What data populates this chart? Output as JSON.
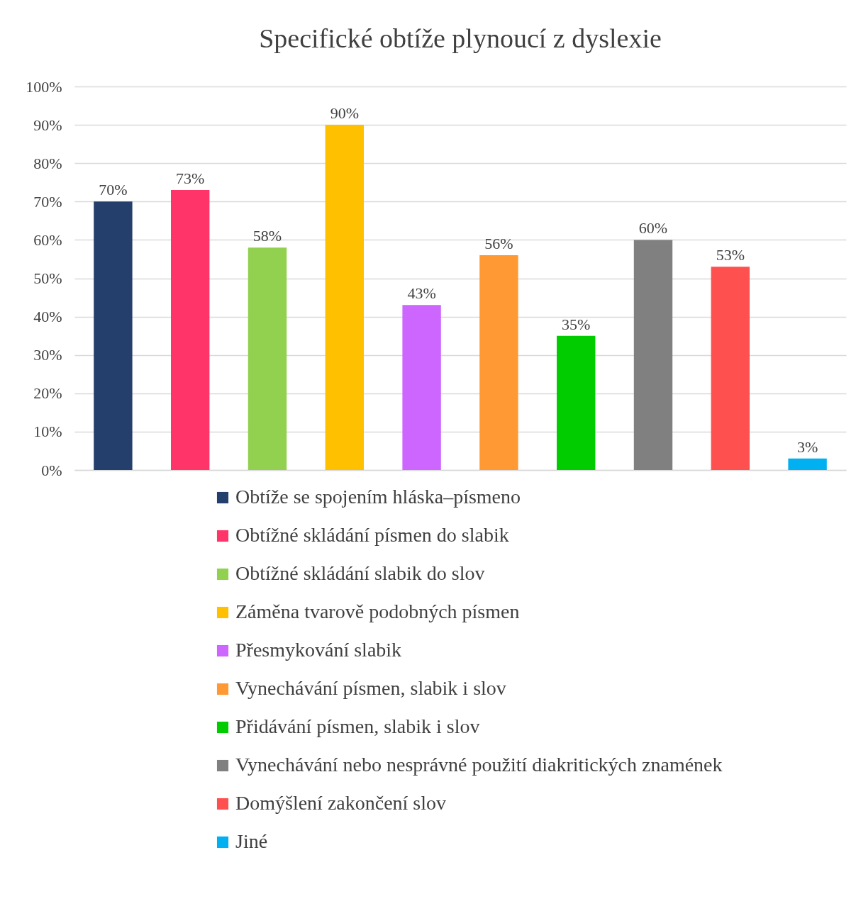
{
  "chart_data": {
    "type": "bar",
    "title": "Specifické obtíže plynoucí z dyslexie",
    "categories": [
      null
    ],
    "series": [
      {
        "name": "Obtíže se spojením hláska–písmeno",
        "color": "#243f6b",
        "values": [
          70
        ],
        "value_labels": [
          "70%"
        ]
      },
      {
        "name": "Obtížné skládání písmen do slabik",
        "color": "#ff3569",
        "values": [
          73
        ],
        "value_labels": [
          "73%"
        ]
      },
      {
        "name": "Obtížné skládání slabik do slov",
        "color": "#92d050",
        "values": [
          58
        ],
        "value_labels": [
          "58%"
        ]
      },
      {
        "name": "Záměna tvarově podobných písmen",
        "color": "#ffc000",
        "values": [
          90
        ],
        "value_labels": [
          "90%"
        ]
      },
      {
        "name": "Přesmykování slabik",
        "color": "#cc66ff",
        "values": [
          43
        ],
        "value_labels": [
          "43%"
        ]
      },
      {
        "name": "Vynechávání písmen, slabik i slov",
        "color": "#ff9933",
        "values": [
          56
        ],
        "value_labels": [
          "56%"
        ]
      },
      {
        "name": "Přidávání písmen, slabik i slov",
        "color": "#00cc00",
        "values": [
          35
        ],
        "value_labels": [
          "35%"
        ]
      },
      {
        "name": "Vynechávání nebo nesprávné použití diakritických znamének",
        "color": "#808080",
        "values": [
          60
        ],
        "value_labels": [
          "60%"
        ]
      },
      {
        "name": "Domýšlení zakončení slov",
        "color": "#ff5050",
        "values": [
          53
        ],
        "value_labels": [
          "53%"
        ]
      },
      {
        "name": "Jiné",
        "color": "#00b0f0",
        "values": [
          3
        ],
        "value_labels": [
          "3%"
        ]
      }
    ],
    "ylim": [
      0,
      100
    ],
    "yticks": [
      {
        "value": 0,
        "label": "0%"
      },
      {
        "value": 10,
        "label": "10%"
      },
      {
        "value": 20,
        "label": "20%"
      },
      {
        "value": 30,
        "label": "30%"
      },
      {
        "value": 40,
        "label": "40%"
      },
      {
        "value": 50,
        "label": "50%"
      },
      {
        "value": 60,
        "label": "60%"
      },
      {
        "value": 70,
        "label": "70%"
      },
      {
        "value": 80,
        "label": "80%"
      },
      {
        "value": 90,
        "label": "90%"
      },
      {
        "value": 100,
        "label": "100%"
      }
    ],
    "grid": "y",
    "legend": "bottom",
    "tick_labels": "y"
  }
}
